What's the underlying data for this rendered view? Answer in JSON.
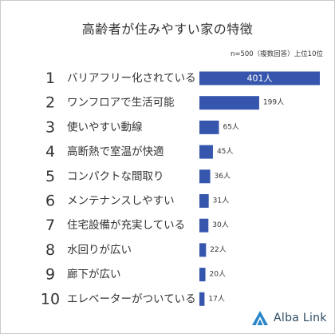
{
  "title": "高齢者が住みやすい家の特徴",
  "note": "n=500（複数回答）上位10位",
  "brand": {
    "name": "Alba Link",
    "mark": "alba-link-logo-icon",
    "color": "#2c4a63"
  },
  "colors": {
    "bar": "#3656ad",
    "text": "#333333"
  },
  "chart_data": {
    "type": "bar",
    "orientation": "horizontal",
    "title": "高齢者が住みやすい家の特徴",
    "ranks": [
      "1",
      "2",
      "3",
      "4",
      "5",
      "6",
      "7",
      "8",
      "9",
      "10"
    ],
    "categories": [
      "バリアフリー化されている",
      "ワンフロアで生活可能",
      "使いやすい動線",
      "高断熱で室温が快適",
      "コンパクトな間取り",
      "メンテナンスしやすい",
      "住宅設備が充実している",
      "水回りが広い",
      "廊下が広い",
      "エレベーターがついている"
    ],
    "values": [
      401,
      199,
      65,
      45,
      36,
      31,
      30,
      22,
      20,
      17
    ],
    "unit": "人",
    "xlim": [
      0,
      401
    ],
    "grid": false,
    "legend": false
  }
}
